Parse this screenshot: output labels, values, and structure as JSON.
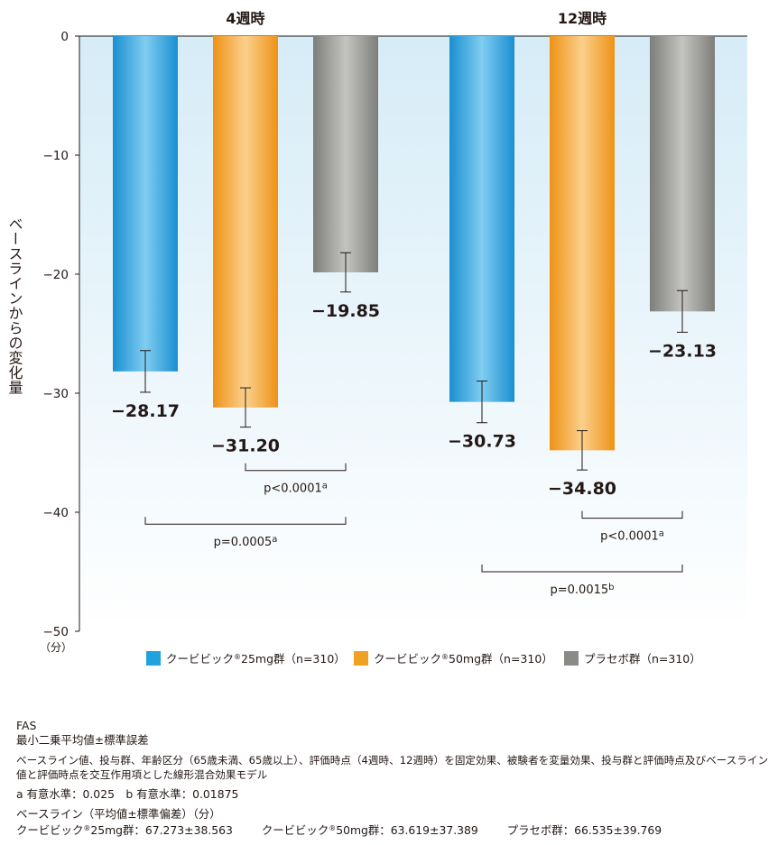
{
  "chart_data": {
    "type": "bar",
    "title": "",
    "ylabel": "ベースラインからの変化量",
    "yunit": "（分）",
    "ylim": [
      -50,
      0
    ],
    "yticks": [
      0,
      -10,
      -20,
      -30,
      -40,
      -50
    ],
    "grid": false,
    "legend_position": "bottom",
    "groups": [
      "4週時",
      "12週時"
    ],
    "series": [
      {
        "name": "クービビック®25mg群（n=310）",
        "values": [
          -28.17,
          -30.73
        ],
        "labels": [
          "−28.17",
          "−30.73"
        ],
        "error": [
          1.75,
          1.75
        ],
        "color": "#1ea3dc"
      },
      {
        "name": "クービビック®50mg群（n=310）",
        "values": [
          -31.2,
          -34.8
        ],
        "labels": [
          "−31.20",
          "−34.80"
        ],
        "error": [
          1.65,
          1.65
        ],
        "color": "#f0a022"
      },
      {
        "name": "プラセボ群（n=310）",
        "values": [
          -19.85,
          -23.13
        ],
        "labels": [
          "−19.85",
          "−23.13"
        ],
        "error": [
          1.65,
          1.75
        ],
        "color": "#8a8a86"
      }
    ],
    "legend_labels": [
      {
        "main": "クービビック",
        "sup": "®",
        "rest": "25mg群（n=310）"
      },
      {
        "main": "クービビック",
        "sup": "®",
        "rest": "50mg群（n=310）"
      },
      {
        "main": "プラセボ群（n=310）",
        "sup": "",
        "rest": ""
      }
    ],
    "annotations": [
      {
        "group": 0,
        "from_series": 1,
        "to_series": 2,
        "text": "p<0.0001",
        "sup": "a",
        "level": -36.5,
        "text_level": -38.0
      },
      {
        "group": 0,
        "from_series": 0,
        "to_series": 2,
        "text": "p=0.0005",
        "sup": "a",
        "level": -41.0,
        "text_level": -42.5
      },
      {
        "group": 1,
        "from_series": 1,
        "to_series": 2,
        "text": "p<0.0001",
        "sup": "a",
        "level": -40.5,
        "text_level": -42.0
      },
      {
        "group": 1,
        "from_series": 0,
        "to_series": 2,
        "text": "p=0.0015",
        "sup": "b",
        "level": -45.0,
        "text_level": -46.5
      }
    ]
  },
  "footnotes": {
    "fas": "FAS",
    "method": "最小二乗平均値±標準誤差",
    "model_line1": "ベースライン値、投与群、年齢区分（65歳未満、65歳以上）、評価時点（4週時、12週時）を固定効果、被験者を変量効果、投与群と評価時点及びベースライン",
    "model_line2": "値と評価時点を交互作用項とした線形混合効果モデル",
    "significance": "a 有意水準：0.025　b 有意水準：0.01875",
    "baseline_title": "ベースライン（平均値±標準偏差）（分）",
    "baseline_items": [
      {
        "label": "クービビック",
        "sup": "®",
        "rest": "25mg群：67.273±38.563"
      },
      {
        "label": "クービビック",
        "sup": "®",
        "rest": "50mg群：63.619±37.389"
      },
      {
        "label": "プラセボ群：66.535±39.769",
        "sup": "",
        "rest": ""
      }
    ]
  }
}
